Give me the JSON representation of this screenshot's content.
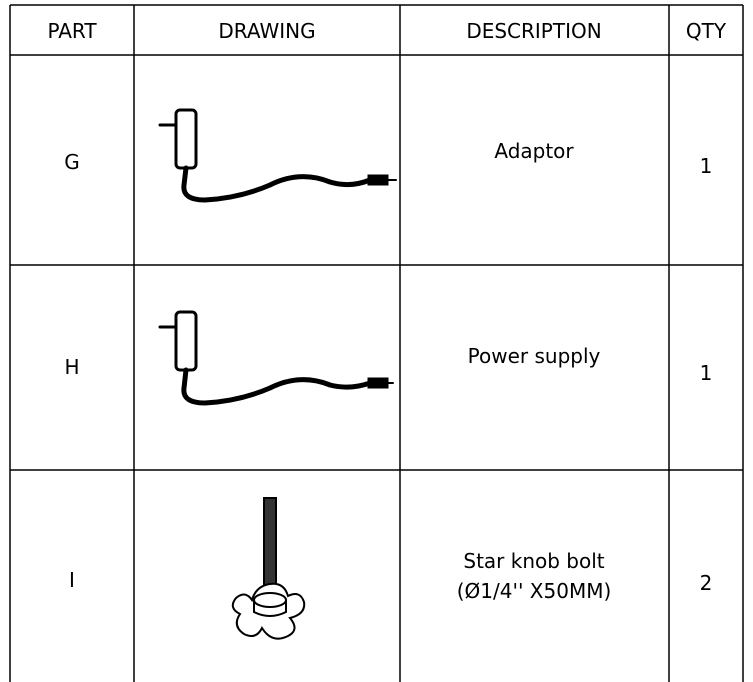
{
  "table": {
    "header": [
      "PART",
      "DRAWING",
      "DESCRIPTION",
      "QTY"
    ],
    "rows": [
      {
        "part": "G",
        "description": [
          "Adaptor"
        ],
        "qty": "1"
      },
      {
        "part": "H",
        "description": [
          "Power supply"
        ],
        "qty": "1"
      },
      {
        "part": "I",
        "description": [
          "Star knob bolt",
          "(Ø1/4'' X50MM)"
        ],
        "qty": "2"
      }
    ]
  }
}
